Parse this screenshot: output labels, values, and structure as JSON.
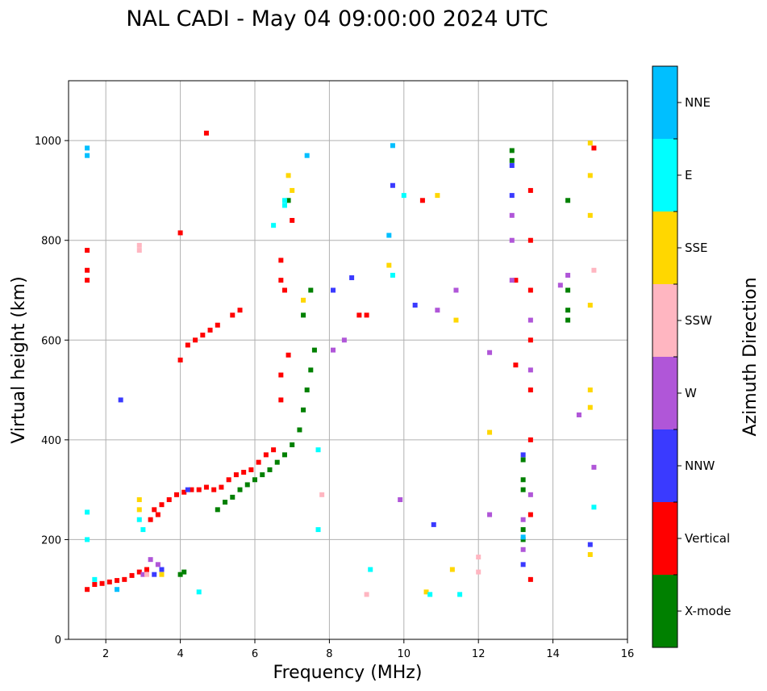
{
  "chart_data": {
    "type": "scatter",
    "title": "NAL CADI - May 04 09:00:00 2024 UTC",
    "xlabel": "Frequency (MHz)",
    "ylabel": "Virtual height (km)",
    "xlim": [
      1,
      16
    ],
    "ylim": [
      0,
      1120
    ],
    "xticks": [
      2,
      4,
      6,
      8,
      10,
      12,
      14,
      16
    ],
    "yticks": [
      0,
      200,
      400,
      600,
      800,
      1000
    ],
    "grid": true,
    "colorbar": {
      "label": "Azimuth Direction",
      "categories": [
        {
          "name": "X-mode",
          "color": "#008000"
        },
        {
          "name": "Vertical",
          "color": "#ff0000"
        },
        {
          "name": "NNW",
          "color": "#3a3aff"
        },
        {
          "name": "W",
          "color": "#b056d8"
        },
        {
          "name": "SSW",
          "color": "#ffb6c1"
        },
        {
          "name": "SSE",
          "color": "#ffd700"
        },
        {
          "name": "E",
          "color": "#00ffff"
        },
        {
          "name": "NNE",
          "color": "#00bfff"
        }
      ]
    },
    "series": [
      {
        "name": "X-mode",
        "points": [
          [
            4.0,
            130
          ],
          [
            4.1,
            135
          ],
          [
            5.0,
            260
          ],
          [
            5.2,
            275
          ],
          [
            5.4,
            285
          ],
          [
            5.6,
            300
          ],
          [
            5.8,
            310
          ],
          [
            6.0,
            320
          ],
          [
            6.2,
            330
          ],
          [
            6.4,
            340
          ],
          [
            6.6,
            355
          ],
          [
            6.8,
            370
          ],
          [
            7.0,
            390
          ],
          [
            7.2,
            420
          ],
          [
            7.3,
            460
          ],
          [
            7.4,
            500
          ],
          [
            7.5,
            540
          ],
          [
            7.6,
            580
          ],
          [
            7.3,
            650
          ],
          [
            7.5,
            700
          ],
          [
            6.9,
            880
          ],
          [
            13.2,
            300
          ],
          [
            13.2,
            320
          ],
          [
            13.2,
            360
          ],
          [
            13.2,
            200
          ],
          [
            13.2,
            220
          ],
          [
            12.9,
            980
          ],
          [
            12.9,
            960
          ],
          [
            14.4,
            880
          ],
          [
            14.4,
            640
          ],
          [
            14.4,
            660
          ],
          [
            14.4,
            700
          ]
        ]
      },
      {
        "name": "Vertical",
        "points": [
          [
            1.5,
            100
          ],
          [
            1.7,
            110
          ],
          [
            1.9,
            112
          ],
          [
            2.1,
            115
          ],
          [
            2.3,
            118
          ],
          [
            2.5,
            120
          ],
          [
            2.7,
            128
          ],
          [
            2.9,
            135
          ],
          [
            3.1,
            140
          ],
          [
            3.3,
            260
          ],
          [
            3.5,
            270
          ],
          [
            3.7,
            280
          ],
          [
            3.9,
            290
          ],
          [
            4.1,
            295
          ],
          [
            4.3,
            300
          ],
          [
            4.5,
            300
          ],
          [
            4.7,
            305
          ],
          [
            4.9,
            300
          ],
          [
            5.1,
            305
          ],
          [
            5.3,
            320
          ],
          [
            5.5,
            330
          ],
          [
            5.7,
            335
          ],
          [
            5.9,
            340
          ],
          [
            6.1,
            355
          ],
          [
            6.3,
            370
          ],
          [
            6.5,
            380
          ],
          [
            6.7,
            530
          ],
          [
            6.7,
            480
          ],
          [
            6.9,
            570
          ],
          [
            3.2,
            240
          ],
          [
            3.4,
            250
          ],
          [
            4.0,
            560
          ],
          [
            4.2,
            590
          ],
          [
            4.4,
            600
          ],
          [
            4.6,
            610
          ],
          [
            4.8,
            620
          ],
          [
            5.0,
            630
          ],
          [
            5.4,
            650
          ],
          [
            5.6,
            660
          ],
          [
            6.7,
            720
          ],
          [
            6.7,
            760
          ],
          [
            6.8,
            700
          ],
          [
            7.0,
            840
          ],
          [
            1.5,
            780
          ],
          [
            1.5,
            740
          ],
          [
            1.5,
            720
          ],
          [
            4.0,
            815
          ],
          [
            4.7,
            1015
          ],
          [
            13.0,
            720
          ],
          [
            13.0,
            550
          ],
          [
            13.4,
            120
          ],
          [
            13.4,
            500
          ],
          [
            13.4,
            700
          ],
          [
            13.4,
            900
          ],
          [
            13.4,
            800
          ],
          [
            13.4,
            600
          ],
          [
            13.4,
            400
          ],
          [
            13.4,
            250
          ],
          [
            8.8,
            650
          ],
          [
            9.0,
            650
          ],
          [
            10.5,
            880
          ],
          [
            15.1,
            985
          ]
        ]
      },
      {
        "name": "NNW",
        "points": [
          [
            3.3,
            130
          ],
          [
            3.5,
            140
          ],
          [
            4.2,
            300
          ],
          [
            13.2,
            370
          ],
          [
            13.2,
            150
          ],
          [
            12.9,
            890
          ],
          [
            12.9,
            950
          ],
          [
            8.1,
            700
          ],
          [
            8.6,
            725
          ],
          [
            10.3,
            670
          ],
          [
            15.0,
            190
          ],
          [
            10.8,
            230
          ],
          [
            9.7,
            910
          ],
          [
            2.4,
            480
          ]
        ]
      },
      {
        "name": "W",
        "points": [
          [
            3.0,
            130
          ],
          [
            3.2,
            160
          ],
          [
            3.4,
            150
          ],
          [
            12.9,
            850
          ],
          [
            12.9,
            800
          ],
          [
            12.9,
            720
          ],
          [
            13.2,
            240
          ],
          [
            13.2,
            180
          ],
          [
            13.4,
            290
          ],
          [
            13.4,
            540
          ],
          [
            13.4,
            640
          ],
          [
            14.2,
            710
          ],
          [
            14.4,
            730
          ],
          [
            14.7,
            450
          ],
          [
            15.1,
            345
          ],
          [
            12.3,
            250
          ],
          [
            12.3,
            575
          ],
          [
            8.1,
            580
          ],
          [
            8.4,
            600
          ],
          [
            9.9,
            280
          ],
          [
            10.9,
            660
          ],
          [
            11.4,
            700
          ]
        ]
      },
      {
        "name": "SSW",
        "points": [
          [
            2.9,
            790
          ],
          [
            2.9,
            780
          ],
          [
            3.1,
            130
          ],
          [
            12.0,
            135
          ],
          [
            12.0,
            165
          ],
          [
            15.1,
            740
          ],
          [
            7.8,
            290
          ],
          [
            9.0,
            90
          ]
        ]
      },
      {
        "name": "SSE",
        "points": [
          [
            2.9,
            260
          ],
          [
            2.9,
            280
          ],
          [
            3.5,
            130
          ],
          [
            7.0,
            900
          ],
          [
            6.9,
            930
          ],
          [
            7.3,
            680
          ],
          [
            12.3,
            415
          ],
          [
            15.0,
            170
          ],
          [
            15.0,
            465
          ],
          [
            15.0,
            500
          ],
          [
            15.0,
            670
          ],
          [
            15.0,
            850
          ],
          [
            15.0,
            930
          ],
          [
            15.0,
            995
          ],
          [
            9.6,
            750
          ],
          [
            10.6,
            95
          ],
          [
            11.3,
            140
          ],
          [
            11.4,
            640
          ],
          [
            10.9,
            890
          ]
        ]
      },
      {
        "name": "E",
        "points": [
          [
            1.5,
            255
          ],
          [
            1.5,
            200
          ],
          [
            1.7,
            120
          ],
          [
            2.9,
            240
          ],
          [
            3.0,
            220
          ],
          [
            4.5,
            95
          ],
          [
            6.5,
            830
          ],
          [
            6.8,
            870
          ],
          [
            6.8,
            880
          ],
          [
            7.7,
            380
          ],
          [
            7.7,
            220
          ],
          [
            10.0,
            890
          ],
          [
            15.1,
            265
          ],
          [
            9.7,
            730
          ],
          [
            9.1,
            140
          ],
          [
            11.5,
            90
          ],
          [
            10.7,
            90
          ]
        ]
      },
      {
        "name": "NNE",
        "points": [
          [
            1.5,
            985
          ],
          [
            1.5,
            970
          ],
          [
            2.3,
            100
          ],
          [
            13.2,
            205
          ],
          [
            9.7,
            990
          ],
          [
            9.6,
            810
          ],
          [
            7.4,
            970
          ]
        ]
      }
    ]
  }
}
